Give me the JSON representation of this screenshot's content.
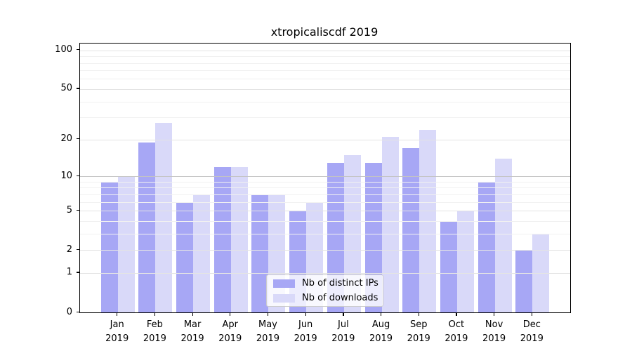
{
  "title": "xtropicaliscdf 2019",
  "chart_data": {
    "type": "bar",
    "categories": [
      "Jan",
      "Feb",
      "Mar",
      "Apr",
      "May",
      "Jun",
      "Jul",
      "Aug",
      "Sep",
      "Oct",
      "Nov",
      "Dec"
    ],
    "year_label": "2019",
    "series": [
      {
        "name": "Nb of distinct IPs",
        "color": "#a7a7f5",
        "values": [
          9,
          19,
          6,
          12,
          7,
          5,
          13,
          13,
          17,
          4,
          9,
          2
        ]
      },
      {
        "name": "Nb of downloads",
        "color": "#d9d9f9",
        "values": [
          10,
          27,
          7,
          12,
          7,
          6,
          15,
          21,
          24,
          5,
          14,
          3
        ]
      }
    ],
    "title": "xtropicaliscdf 2019",
    "xlabel": "",
    "ylabel": "",
    "yscale": "log1p",
    "yticks": [
      0,
      1,
      2,
      5,
      10,
      20,
      50,
      100
    ],
    "minor_gridline_values": [
      3,
      4,
      6,
      7,
      8,
      9,
      30,
      40,
      60,
      70,
      80,
      90
    ],
    "major_gridline_values": [
      1,
      2,
      5,
      10,
      20,
      50,
      100
    ],
    "emphasized_gridline_value": 10,
    "ylim_top_value": 112.8,
    "grid": true,
    "legend_position": "lower center",
    "colors": {
      "bar_ips": "#a7a7f5",
      "bar_downloads": "#d9d9f9",
      "grid_minor": "#f1f1f1",
      "grid_major": "#e4e4e4",
      "grid_emphasized": "#c3c3c3",
      "axis": "#000000",
      "legend_border": "#cccccc"
    }
  }
}
